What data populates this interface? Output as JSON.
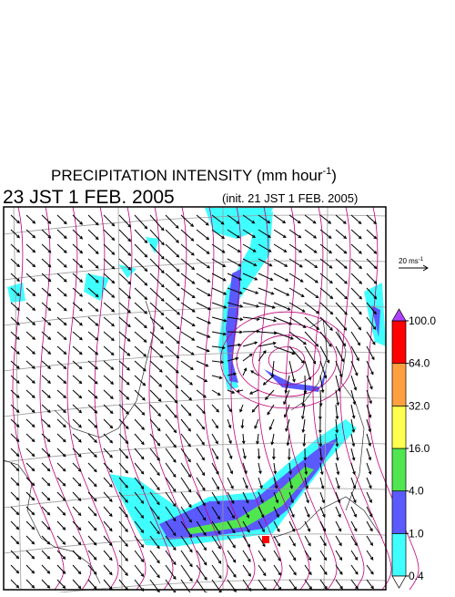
{
  "title": {
    "text": "PRECIPITATION INTENSITY (mm hour",
    "superscript": "-1",
    "close": ")"
  },
  "valid_time": "23 JST 1 FEB. 2005",
  "init_time": "(init. 21 JST 1 FEB. 2005)",
  "wind_scale": {
    "text": "20 ms",
    "superscript": "-1"
  },
  "colorbar": {
    "ticks": [
      {
        "value": 0.4,
        "label": "0.4"
      },
      {
        "value": 1,
        "label": "1.0"
      },
      {
        "value": 4,
        "label": "4.0"
      },
      {
        "value": 16,
        "label": "16.0"
      },
      {
        "value": 32,
        "label": "32.0"
      },
      {
        "value": 64,
        "label": "64.0"
      },
      {
        "value": 100,
        "label": "100.0"
      }
    ],
    "colors": [
      "#40ffff",
      "#5a5aff",
      "#50e650",
      "#ffff50",
      "#ffa040",
      "#ff0000"
    ],
    "under_color": "#ffffff",
    "over_color": "#b040ff"
  }
}
